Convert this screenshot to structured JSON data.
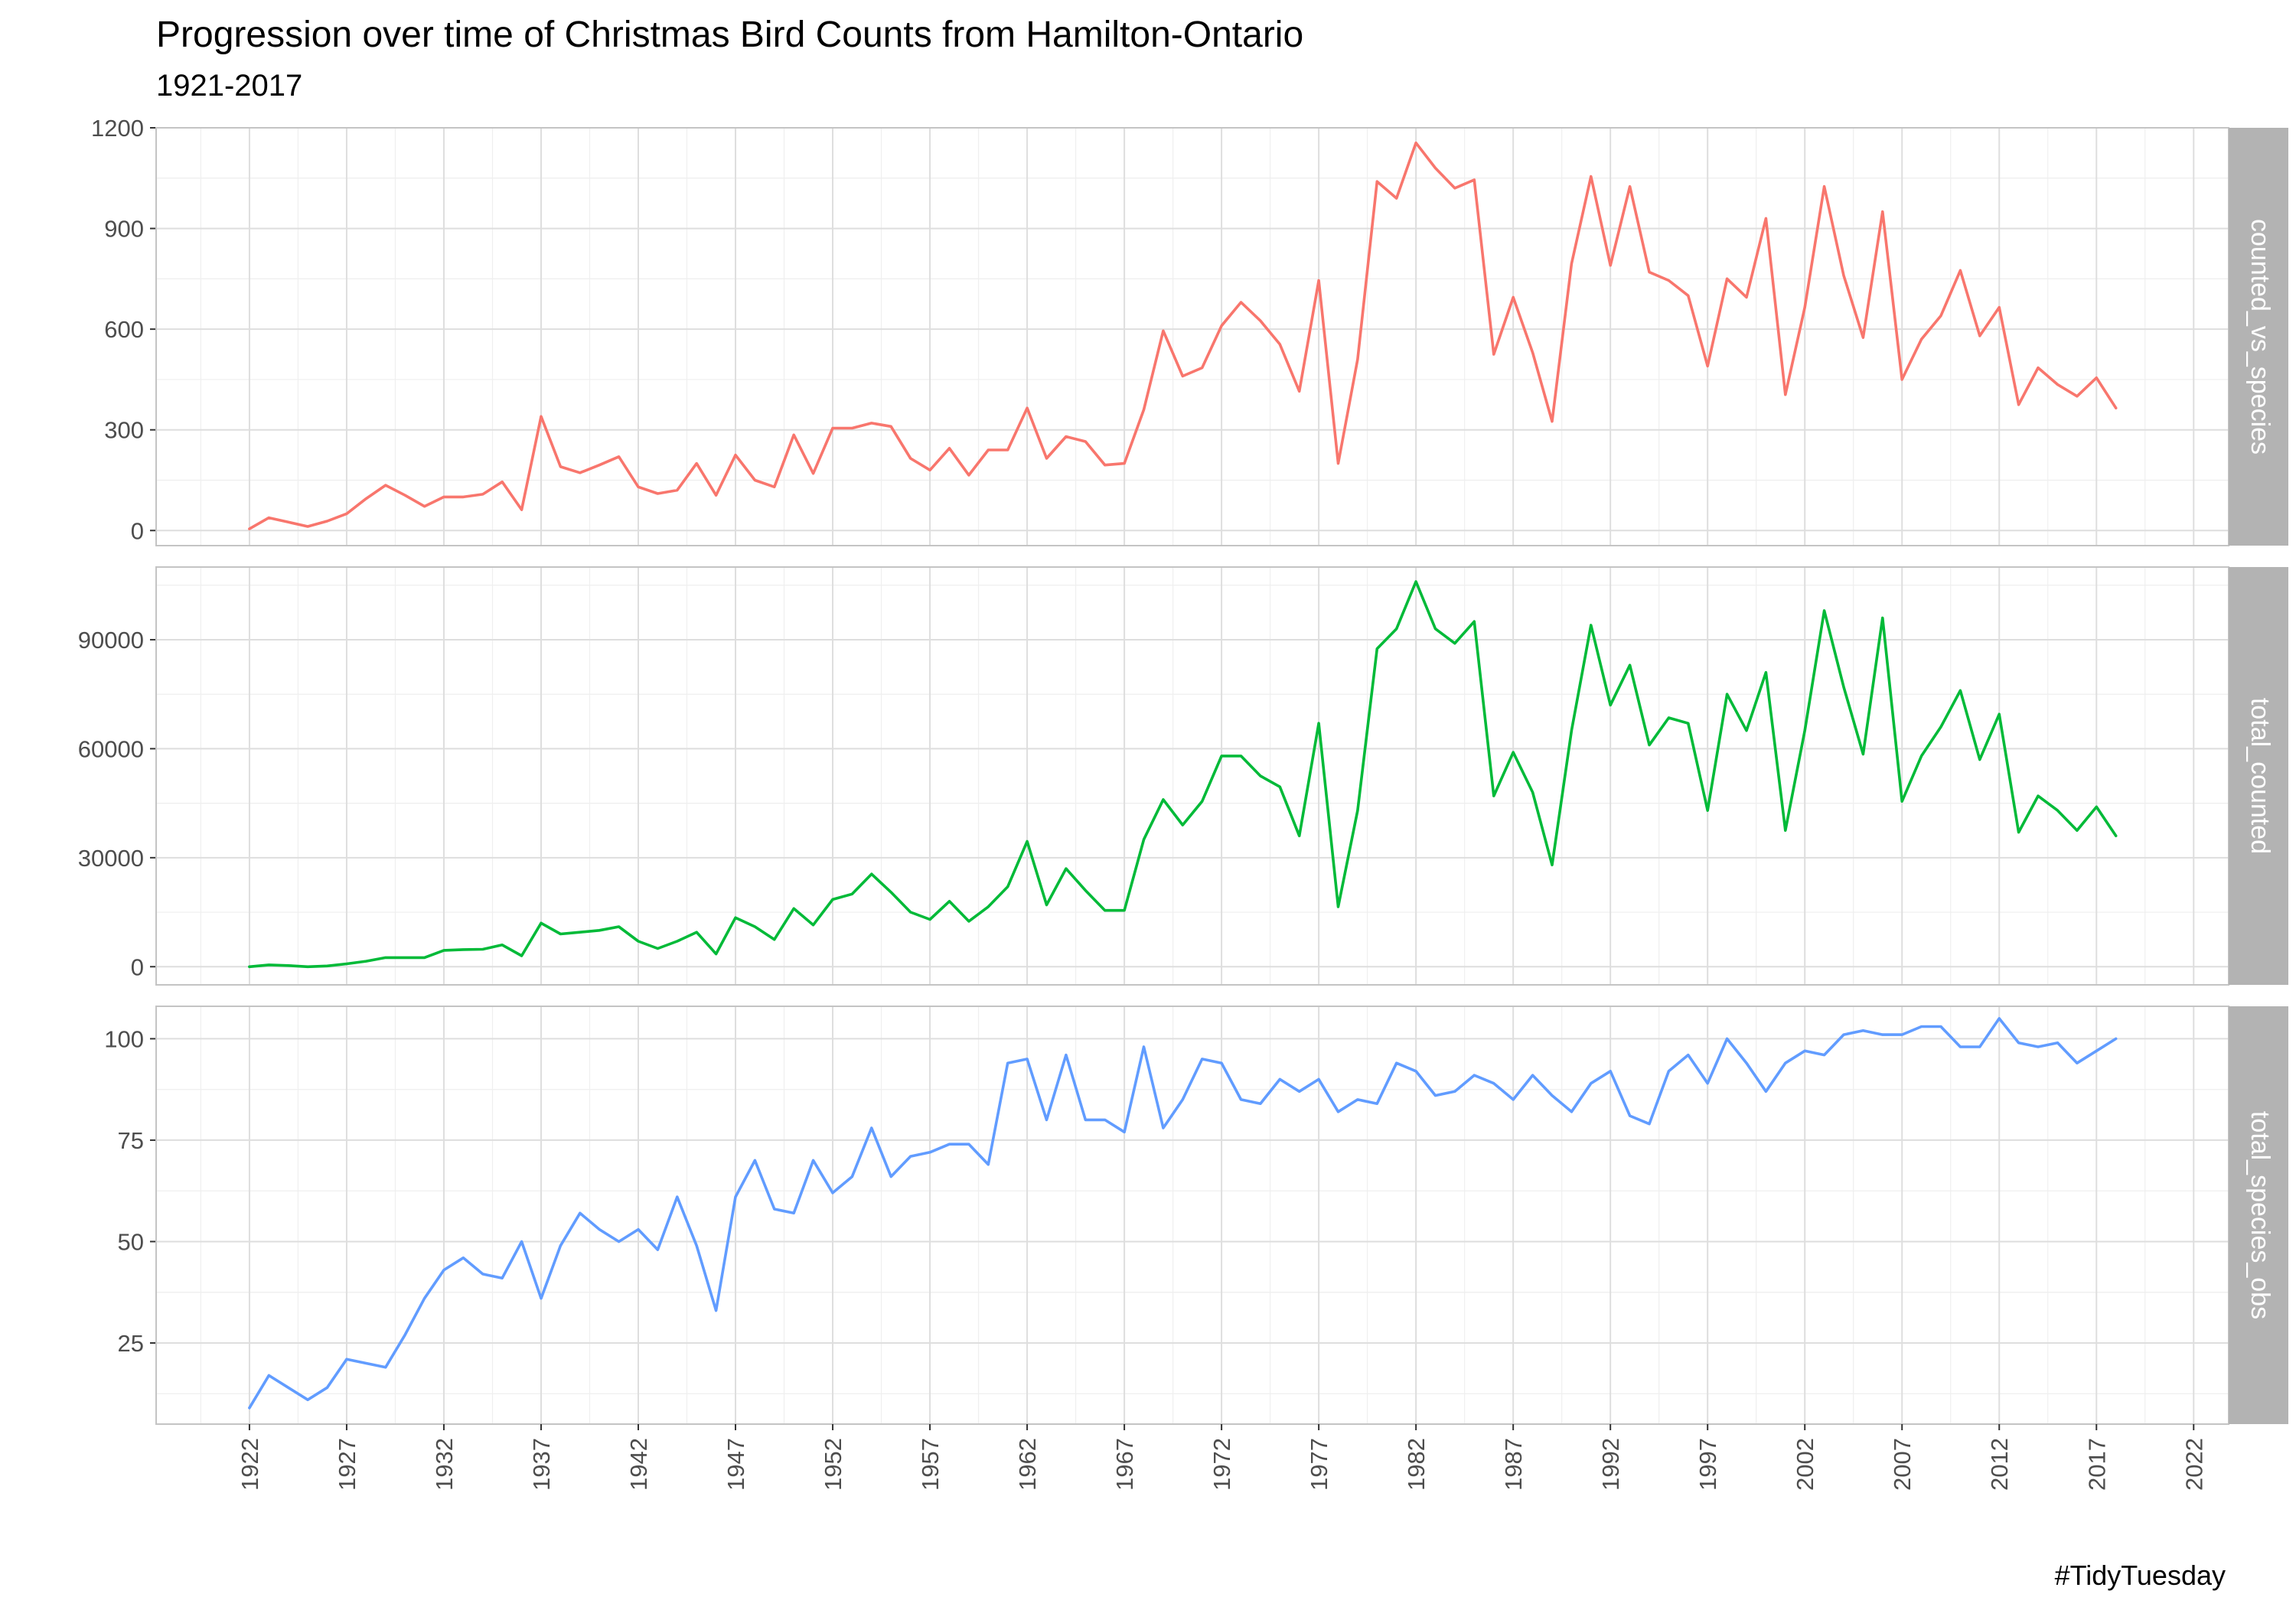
{
  "chart_data": {
    "type": "line",
    "title": "Progression over time of Christmas Bird Counts from Hamilton-Ontario",
    "subtitle": "1921-2017",
    "caption": "#TidyTuesday",
    "xlabel": "",
    "ylabel": "",
    "xlim": [
      1917.2,
      2023.8
    ],
    "x_ticks": [
      1922,
      1927,
      1932,
      1937,
      1942,
      1947,
      1952,
      1957,
      1962,
      1967,
      1972,
      1977,
      1982,
      1987,
      1992,
      1997,
      2002,
      2007,
      2012,
      2017,
      2022
    ],
    "x_tick_labels": [
      "1922",
      "1927",
      "1932",
      "1937",
      "1942",
      "1947",
      "1952",
      "1957",
      "1962",
      "1967",
      "1972",
      "1977",
      "1982",
      "1987",
      "1992",
      "1997",
      "2002",
      "2007",
      "2012",
      "2017",
      "2022"
    ],
    "grid": true,
    "legend": "none",
    "facets": [
      {
        "strip": "counted_vs_species",
        "color": "#F8766D",
        "ylim": [
          -45,
          1200
        ],
        "y_ticks": [
          0,
          300,
          600,
          900,
          1200
        ],
        "y_tick_labels": [
          "0",
          "300",
          "600",
          "900",
          "1200"
        ],
        "x": [
          1922,
          1923,
          1924,
          1925,
          1926,
          1927,
          1928,
          1929,
          1930,
          1931,
          1932,
          1933,
          1934,
          1935,
          1936,
          1937,
          1938,
          1939,
          1940,
          1941,
          1942,
          1943,
          1944,
          1945,
          1946,
          1947,
          1948,
          1949,
          1950,
          1951,
          1952,
          1953,
          1954,
          1955,
          1956,
          1957,
          1958,
          1959,
          1960,
          1961,
          1962,
          1963,
          1964,
          1965,
          1966,
          1967,
          1968,
          1969,
          1970,
          1971,
          1972,
          1973,
          1974,
          1975,
          1976,
          1977,
          1978,
          1979,
          1980,
          1981,
          1982,
          1983,
          1984,
          1985,
          1986,
          1987,
          1988,
          1989,
          1990,
          1991,
          1992,
          1993,
          1994,
          1995,
          1996,
          1997,
          1998,
          1999,
          2000,
          2001,
          2002,
          2003,
          2004,
          2005,
          2006,
          2007,
          2008,
          2009,
          2010,
          2011,
          2012,
          2013,
          2014,
          2015,
          2016,
          2017,
          2018
        ],
        "values": [
          5,
          38,
          25,
          12,
          28,
          50,
          95,
          135,
          105,
          72,
          100,
          100,
          108,
          145,
          62,
          340,
          190,
          172,
          195,
          220,
          130,
          110,
          120,
          200,
          105,
          225,
          150,
          130,
          285,
          170,
          305,
          305,
          320,
          310,
          215,
          180,
          245,
          165,
          240,
          240,
          365,
          215,
          280,
          265,
          195,
          200,
          360,
          595,
          460,
          485,
          610,
          680,
          625,
          555,
          415,
          745,
          200,
          510,
          1040,
          990,
          1155,
          1080,
          1020,
          1045,
          525,
          695,
          530,
          325,
          795,
          1055,
          790,
          1025,
          770,
          745,
          700,
          490,
          750,
          695,
          930,
          405,
          665,
          1025,
          760,
          575,
          950,
          450,
          570,
          640,
          775,
          580,
          665,
          375,
          485,
          435,
          400,
          455,
          365
        ]
      },
      {
        "strip": "total_counted",
        "color": "#00BA38",
        "ylim": [
          -5000,
          110000
        ],
        "y_ticks": [
          0,
          30000,
          60000,
          90000
        ],
        "y_tick_labels": [
          "0",
          "30000",
          "60000",
          "90000"
        ],
        "x": [
          1922,
          1923,
          1924,
          1925,
          1926,
          1927,
          1928,
          1929,
          1930,
          1931,
          1932,
          1933,
          1934,
          1935,
          1936,
          1937,
          1938,
          1939,
          1940,
          1941,
          1942,
          1943,
          1944,
          1945,
          1946,
          1947,
          1948,
          1949,
          1950,
          1951,
          1952,
          1953,
          1954,
          1955,
          1956,
          1957,
          1958,
          1959,
          1960,
          1961,
          1962,
          1963,
          1964,
          1965,
          1966,
          1967,
          1968,
          1969,
          1970,
          1971,
          1972,
          1973,
          1974,
          1975,
          1976,
          1977,
          1978,
          1979,
          1980,
          1981,
          1982,
          1983,
          1984,
          1985,
          1986,
          1987,
          1988,
          1989,
          1990,
          1991,
          1992,
          1993,
          1994,
          1995,
          1996,
          1997,
          1998,
          1999,
          2000,
          2001,
          2002,
          2003,
          2004,
          2005,
          2006,
          2007,
          2008,
          2009,
          2010,
          2011,
          2012,
          2013,
          2014,
          2015,
          2016,
          2017,
          2018
        ],
        "values": [
          0,
          500,
          300,
          0,
          200,
          800,
          1500,
          2500,
          2500,
          2500,
          4500,
          4700,
          4800,
          6000,
          3000,
          12000,
          9000,
          9500,
          10000,
          11000,
          7000,
          5000,
          7000,
          9500,
          3500,
          13500,
          11000,
          7500,
          16000,
          11500,
          18500,
          20000,
          25500,
          20500,
          15000,
          13000,
          18000,
          12500,
          16500,
          22000,
          34500,
          17000,
          27000,
          21000,
          15500,
          15500,
          35000,
          46000,
          39000,
          45500,
          58000,
          58000,
          52500,
          49500,
          36000,
          67000,
          16500,
          43000,
          87500,
          93000,
          106000,
          93000,
          89000,
          95000,
          47000,
          59000,
          48000,
          28000,
          65000,
          94000,
          72000,
          83000,
          61000,
          68500,
          67000,
          43000,
          75000,
          65000,
          81000,
          37500,
          65000,
          98000,
          77000,
          58500,
          96000,
          45500,
          58000,
          66000,
          76000,
          57000,
          69500,
          37000,
          47000,
          43000,
          37500,
          44000,
          36000
        ]
      },
      {
        "strip": "total_species_obs",
        "color": "#619CFF",
        "ylim": [
          5,
          108
        ],
        "y_ticks": [
          25,
          50,
          75,
          100
        ],
        "y_tick_labels": [
          "25",
          "50",
          "75",
          "100"
        ],
        "x": [
          1922,
          1923,
          1924,
          1925,
          1926,
          1927,
          1928,
          1929,
          1930,
          1931,
          1932,
          1933,
          1934,
          1935,
          1936,
          1937,
          1938,
          1939,
          1940,
          1941,
          1942,
          1943,
          1944,
          1945,
          1946,
          1947,
          1948,
          1949,
          1950,
          1951,
          1952,
          1953,
          1954,
          1955,
          1956,
          1957,
          1958,
          1959,
          1960,
          1961,
          1962,
          1963,
          1964,
          1965,
          1966,
          1967,
          1968,
          1969,
          1970,
          1971,
          1972,
          1973,
          1974,
          1975,
          1976,
          1977,
          1978,
          1979,
          1980,
          1981,
          1982,
          1983,
          1984,
          1985,
          1986,
          1987,
          1988,
          1989,
          1990,
          1991,
          1992,
          1993,
          1994,
          1995,
          1996,
          1997,
          1998,
          1999,
          2000,
          2001,
          2002,
          2003,
          2004,
          2005,
          2006,
          2007,
          2008,
          2009,
          2010,
          2011,
          2012,
          2013,
          2014,
          2015,
          2016,
          2017,
          2018
        ],
        "values": [
          9,
          17,
          14,
          11,
          14,
          21,
          20,
          19,
          27,
          36,
          43,
          46,
          42,
          41,
          50,
          36,
          49,
          57,
          53,
          50,
          53,
          48,
          61,
          49,
          33,
          61,
          70,
          58,
          57,
          70,
          62,
          66,
          78,
          66,
          71,
          72,
          74,
          74,
          69,
          94,
          95,
          80,
          96,
          80,
          80,
          77,
          98,
          78,
          85,
          95,
          94,
          85,
          84,
          90,
          87,
          90,
          82,
          85,
          84,
          94,
          92,
          86,
          87,
          91,
          89,
          85,
          91,
          86,
          82,
          89,
          92,
          81,
          79,
          92,
          96,
          89,
          100,
          94,
          87,
          94,
          97,
          96,
          101,
          102,
          101,
          101,
          103,
          103,
          98,
          98,
          105,
          99,
          98,
          99,
          94,
          97,
          100
        ]
      }
    ]
  }
}
